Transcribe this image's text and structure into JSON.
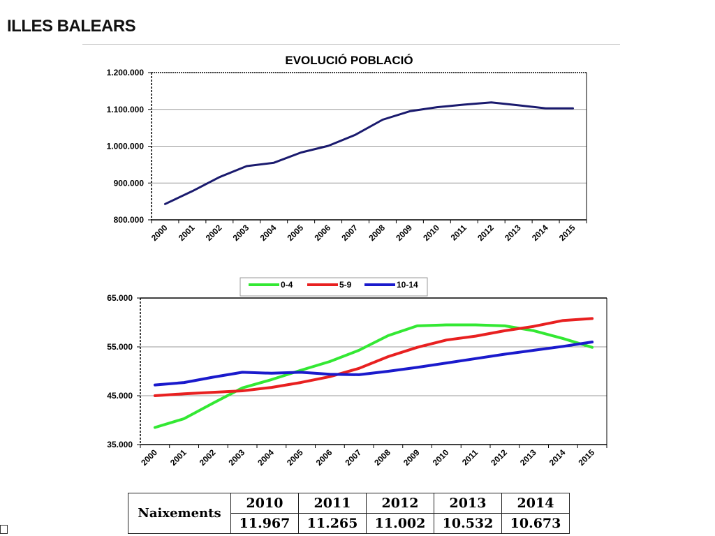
{
  "header": {
    "title": "ILLES BALEARS"
  },
  "chart_data": [
    {
      "type": "line",
      "title": "EVOLUCIÓ POBLACIÓ",
      "x": [
        "2000",
        "2001",
        "2002",
        "2003",
        "2004",
        "2005",
        "2006",
        "2007",
        "2008",
        "2009",
        "2010",
        "2011",
        "2012",
        "2013",
        "2014",
        "2015"
      ],
      "y_ticks": [
        "800.000",
        "900.000",
        "1.000.000",
        "1.100.000",
        "1.200.000"
      ],
      "ylim": [
        800000,
        1200000
      ],
      "grid": true,
      "series": [
        {
          "values": [
            843000,
            878000,
            916000,
            946000,
            955000,
            983000,
            1001000,
            1031000,
            1072000,
            1095000,
            1106000,
            1113000,
            1119000,
            1111000,
            1103000,
            1103000
          ],
          "color": "#1a1a6e"
        }
      ]
    },
    {
      "type": "line",
      "title": "",
      "x": [
        "2000",
        "2001",
        "2002",
        "2003",
        "2004",
        "2005",
        "2006",
        "2007",
        "2008",
        "2009",
        "2010",
        "2011",
        "2012",
        "2013",
        "2014",
        "2015"
      ],
      "y_ticks": [
        "35.000",
        "45.000",
        "55.000",
        "65.000"
      ],
      "ylim": [
        35000,
        65000
      ],
      "grid": true,
      "legend": "top",
      "series": [
        {
          "name": "0-4",
          "color": "#33e833",
          "values": [
            38500,
            40300,
            43500,
            46600,
            48300,
            50200,
            52000,
            54300,
            57300,
            59300,
            59500,
            59500,
            59300,
            58300,
            56700,
            54900
          ]
        },
        {
          "name": "5-9",
          "color": "#e82020",
          "values": [
            45000,
            45400,
            45700,
            46000,
            46700,
            47700,
            48900,
            50600,
            53000,
            54900,
            56400,
            57200,
            58300,
            59200,
            60400,
            60800
          ]
        },
        {
          "name": "10-14",
          "color": "#1a1acc",
          "values": [
            47200,
            47700,
            48800,
            49800,
            49600,
            49800,
            49400,
            49300,
            50000,
            50800,
            51700,
            52600,
            53500,
            54300,
            55100,
            56000
          ]
        }
      ]
    }
  ],
  "births_table": {
    "label": "Naixements",
    "years": [
      "2010",
      "2011",
      "2012",
      "2013",
      "2014"
    ],
    "values": [
      "11.967",
      "11.265",
      "11.002",
      "10.532",
      "10.673"
    ]
  },
  "corner_icon": "small-box-icon"
}
